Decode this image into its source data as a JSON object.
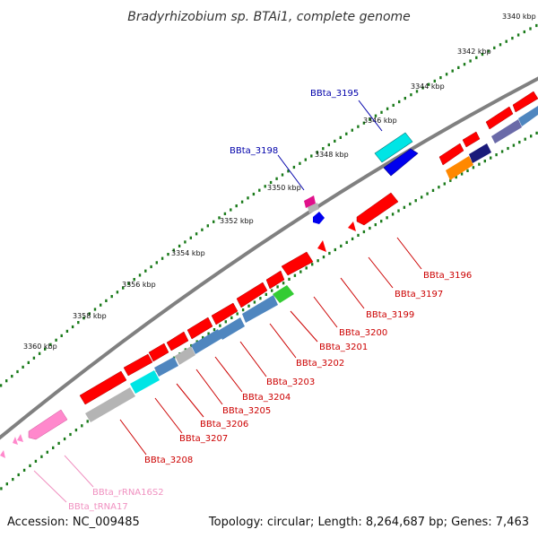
{
  "title": "Bradyrhizobium sp. BTAi1, complete genome",
  "footer": {
    "accession": "Accession: NC_009485",
    "summary": "Topology: circular; Length: 8,264,687 bp; Genes: 7,463"
  },
  "axis_ticks": [
    "3340 kbp",
    "3342 kbp",
    "3344 kbp",
    "3346 kbp",
    "3348 kbp",
    "3350 kbp",
    "3352 kbp",
    "3354 kbp",
    "3356 kbp",
    "3358 kbp",
    "3360 kbp"
  ],
  "gene_labels": {
    "bbta_3195": "BBta_3195",
    "bbta_3198": "BBta_3198",
    "bbta_3196": "BBta_3196",
    "bbta_3197": "BBta_3197",
    "bbta_3199": "BBta_3199",
    "bbta_3200": "BBta_3200",
    "bbta_3201": "BBta_3201",
    "bbta_3202": "BBta_3202",
    "bbta_3203": "BBta_3203",
    "bbta_3204": "BBta_3204",
    "bbta_3205": "BBta_3205",
    "bbta_3206": "BBta_3206",
    "bbta_3207": "BBta_3207",
    "bbta_3208": "BBta_3208",
    "rrna16s2": "BBta_rRNA16S2",
    "trna17": "BBta_tRNA17"
  },
  "colors": {
    "red": "#ff0000",
    "cyan": "#00e5e5",
    "blue": "#0000ee",
    "steel": "#4f86bf",
    "gray": "#b4b4b4",
    "pink": "#ff88cc",
    "magenta": "#e0108a",
    "green": "#33cc33",
    "orange": "#ff8800",
    "navy": "#1a1a7a",
    "slate": "#6a6aa8",
    "backbone": "#808080",
    "dots": "#1a7a1a",
    "label_red": "#cc0000",
    "label_blue": "#0000aa",
    "label_pink": "#f090c0"
  }
}
